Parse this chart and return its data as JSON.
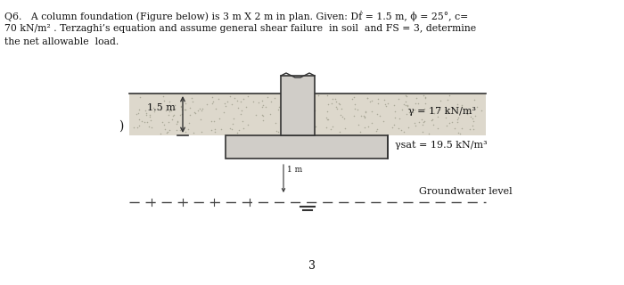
{
  "title_line1": "Q6.   A column foundation (Figure below) is 3 m X 2 m in plan. Given: Dḟ = 1.5 m, ϕ = 25°, c=",
  "title_line2": "70 kN/m² . Terzaghi’s equation and assume general shear failure  in soil  and FS = 3, determine",
  "title_line3": "the net allowable  load.",
  "label_depth": "1.5 m",
  "label_dims": "3 m × 2 m",
  "label_gamma": "γ = 17 kN/m³",
  "label_gamma_sat": "γsat = 19.5 kN/m³",
  "label_1m": "1 m",
  "label_gw": "Groundwater level",
  "label_page": "3",
  "bg_color": "#ffffff",
  "soil_color_light": "#ddd8cc",
  "foundation_color": "#d0cdc8",
  "line_color": "#333333",
  "dashed_color": "#444444",
  "text_color": "#111111"
}
